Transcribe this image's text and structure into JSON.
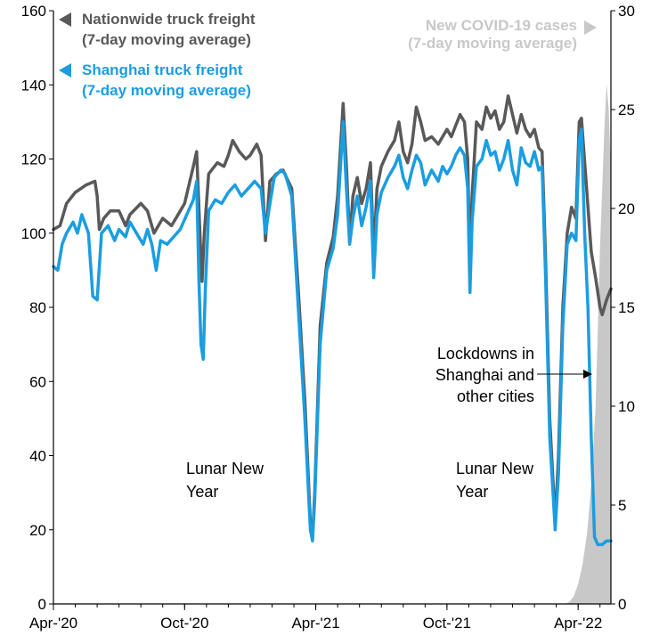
{
  "chart_data": {
    "type": "line",
    "x_range": [
      "Apr-'20",
      "Apr-'22"
    ],
    "x_ticks": [
      "Apr-'20",
      "Oct-'20",
      "Apr-'21",
      "Oct-'21",
      "Apr-'22"
    ],
    "y_left": {
      "ticks": [
        0,
        20,
        40,
        60,
        80,
        100,
        120,
        140,
        160
      ],
      "range": [
        0,
        160
      ]
    },
    "y_right": {
      "ticks": [
        0,
        5,
        10,
        15,
        20,
        25,
        30
      ],
      "range": [
        0,
        30
      ]
    },
    "grid": false,
    "legend_placement": "top-left and top-right",
    "series": [
      {
        "name": "Nationwide truck freight",
        "name_line2": "(7-day moving average)",
        "axis": "left",
        "color": "#595959",
        "points": [
          [
            0,
            101
          ],
          [
            0.3,
            102
          ],
          [
            0.6,
            108
          ],
          [
            1.0,
            111
          ],
          [
            1.5,
            113
          ],
          [
            1.9,
            114
          ],
          [
            2.0,
            110
          ],
          [
            2.1,
            101
          ],
          [
            2.3,
            104
          ],
          [
            2.6,
            106
          ],
          [
            3.0,
            106
          ],
          [
            3.3,
            102
          ],
          [
            3.5,
            105
          ],
          [
            4.0,
            108
          ],
          [
            4.3,
            106
          ],
          [
            4.6,
            100
          ],
          [
            5.0,
            104
          ],
          [
            5.4,
            102
          ],
          [
            5.8,
            106
          ],
          [
            6.0,
            108
          ],
          [
            6.2,
            113
          ],
          [
            6.4,
            118
          ],
          [
            6.55,
            122
          ],
          [
            6.7,
            100
          ],
          [
            6.8,
            87
          ],
          [
            6.9,
            100
          ],
          [
            7.1,
            116
          ],
          [
            7.5,
            119
          ],
          [
            7.8,
            118
          ],
          [
            8.0,
            121
          ],
          [
            8.2,
            125
          ],
          [
            8.5,
            122
          ],
          [
            8.8,
            120
          ],
          [
            9.0,
            121
          ],
          [
            9.3,
            124
          ],
          [
            9.5,
            121
          ],
          [
            9.7,
            98
          ],
          [
            9.9,
            114
          ],
          [
            10.2,
            116
          ],
          [
            10.5,
            117
          ],
          [
            10.9,
            112
          ],
          [
            11.2,
            85
          ],
          [
            11.5,
            55
          ],
          [
            11.75,
            22
          ],
          [
            11.85,
            18
          ],
          [
            11.95,
            30
          ],
          [
            12.2,
            75
          ],
          [
            12.5,
            92
          ],
          [
            12.8,
            99
          ],
          [
            13.0,
            110
          ],
          [
            13.25,
            135
          ],
          [
            13.4,
            118
          ],
          [
            13.55,
            98
          ],
          [
            13.7,
            110
          ],
          [
            13.9,
            115
          ],
          [
            14.1,
            108
          ],
          [
            14.3,
            112
          ],
          [
            14.5,
            119
          ],
          [
            14.65,
            94
          ],
          [
            14.8,
            112
          ],
          [
            15.0,
            118
          ],
          [
            15.3,
            122
          ],
          [
            15.6,
            125
          ],
          [
            15.8,
            130
          ],
          [
            16.0,
            122
          ],
          [
            16.2,
            119
          ],
          [
            16.4,
            124
          ],
          [
            16.6,
            134
          ],
          [
            16.8,
            130
          ],
          [
            17.0,
            125
          ],
          [
            17.3,
            126
          ],
          [
            17.6,
            124
          ],
          [
            17.8,
            126
          ],
          [
            18.0,
            128
          ],
          [
            18.2,
            126
          ],
          [
            18.4,
            129
          ],
          [
            18.6,
            132
          ],
          [
            18.8,
            130
          ],
          [
            18.95,
            120
          ],
          [
            19.05,
            90
          ],
          [
            19.15,
            110
          ],
          [
            19.35,
            130
          ],
          [
            19.6,
            128
          ],
          [
            19.8,
            134
          ],
          [
            20.0,
            131
          ],
          [
            20.2,
            133
          ],
          [
            20.4,
            128
          ],
          [
            20.6,
            130
          ],
          [
            20.8,
            137
          ],
          [
            21.0,
            132
          ],
          [
            21.2,
            127
          ],
          [
            21.4,
            132
          ],
          [
            21.6,
            128
          ],
          [
            21.8,
            126
          ],
          [
            22.0,
            128
          ],
          [
            22.2,
            123
          ],
          [
            22.35,
            122
          ],
          [
            22.5,
            95
          ],
          [
            22.7,
            50
          ],
          [
            22.95,
            22
          ],
          [
            23.1,
            40
          ],
          [
            23.3,
            80
          ],
          [
            23.5,
            100
          ],
          [
            23.7,
            107
          ],
          [
            23.9,
            104
          ],
          [
            24.05,
            130
          ],
          [
            24.15,
            131
          ],
          [
            24.35,
            115
          ],
          [
            24.6,
            95
          ],
          [
            24.8,
            88
          ],
          [
            25.0,
            80
          ],
          [
            25.1,
            78
          ],
          [
            25.3,
            82
          ],
          [
            25.5,
            85
          ]
        ]
      },
      {
        "name": "Shanghai truck freight",
        "name_line2": "(7-day moving average)",
        "axis": "left",
        "color": "#1b9de0",
        "points": [
          [
            0,
            91
          ],
          [
            0.2,
            90
          ],
          [
            0.4,
            97
          ],
          [
            0.6,
            100
          ],
          [
            0.9,
            103
          ],
          [
            1.1,
            100
          ],
          [
            1.3,
            105
          ],
          [
            1.6,
            100
          ],
          [
            1.8,
            83
          ],
          [
            2.0,
            82
          ],
          [
            2.2,
            100
          ],
          [
            2.5,
            102
          ],
          [
            2.8,
            98
          ],
          [
            3.0,
            101
          ],
          [
            3.3,
            99
          ],
          [
            3.5,
            103
          ],
          [
            3.8,
            100
          ],
          [
            4.1,
            97
          ],
          [
            4.3,
            101
          ],
          [
            4.5,
            97
          ],
          [
            4.7,
            90
          ],
          [
            4.9,
            98
          ],
          [
            5.2,
            97
          ],
          [
            5.5,
            99
          ],
          [
            5.8,
            101
          ],
          [
            6.1,
            105
          ],
          [
            6.4,
            109
          ],
          [
            6.55,
            114
          ],
          [
            6.65,
            88
          ],
          [
            6.75,
            70
          ],
          [
            6.85,
            66
          ],
          [
            6.95,
            85
          ],
          [
            7.1,
            106
          ],
          [
            7.4,
            109
          ],
          [
            7.7,
            108
          ],
          [
            8.0,
            111
          ],
          [
            8.3,
            113
          ],
          [
            8.6,
            110
          ],
          [
            8.9,
            112
          ],
          [
            9.2,
            114
          ],
          [
            9.5,
            112
          ],
          [
            9.7,
            100
          ],
          [
            9.85,
            106
          ],
          [
            10.1,
            115
          ],
          [
            10.4,
            117
          ],
          [
            10.6,
            116
          ],
          [
            10.9,
            110
          ],
          [
            11.2,
            80
          ],
          [
            11.5,
            50
          ],
          [
            11.75,
            20
          ],
          [
            11.85,
            17
          ],
          [
            11.95,
            28
          ],
          [
            12.2,
            70
          ],
          [
            12.5,
            90
          ],
          [
            12.8,
            96
          ],
          [
            13.0,
            105
          ],
          [
            13.25,
            130
          ],
          [
            13.4,
            112
          ],
          [
            13.55,
            97
          ],
          [
            13.7,
            104
          ],
          [
            13.9,
            110
          ],
          [
            14.1,
            102
          ],
          [
            14.3,
            107
          ],
          [
            14.5,
            114
          ],
          [
            14.65,
            88
          ],
          [
            14.8,
            105
          ],
          [
            15.0,
            111
          ],
          [
            15.3,
            115
          ],
          [
            15.6,
            118
          ],
          [
            15.8,
            121
          ],
          [
            16.0,
            115
          ],
          [
            16.2,
            112
          ],
          [
            16.4,
            117
          ],
          [
            16.6,
            121
          ],
          [
            16.8,
            119
          ],
          [
            17.0,
            113
          ],
          [
            17.3,
            117
          ],
          [
            17.6,
            114
          ],
          [
            17.8,
            118
          ],
          [
            18.0,
            116
          ],
          [
            18.2,
            118
          ],
          [
            18.4,
            121
          ],
          [
            18.6,
            123
          ],
          [
            18.8,
            121
          ],
          [
            18.95,
            112
          ],
          [
            19.05,
            84
          ],
          [
            19.15,
            103
          ],
          [
            19.35,
            118
          ],
          [
            19.6,
            120
          ],
          [
            19.8,
            125
          ],
          [
            20.0,
            121
          ],
          [
            20.2,
            122
          ],
          [
            20.4,
            117
          ],
          [
            20.6,
            120
          ],
          [
            20.8,
            125
          ],
          [
            21.0,
            117
          ],
          [
            21.2,
            113
          ],
          [
            21.4,
            123
          ],
          [
            21.6,
            119
          ],
          [
            21.8,
            118
          ],
          [
            22.0,
            122
          ],
          [
            22.2,
            117
          ],
          [
            22.35,
            118
          ],
          [
            22.5,
            90
          ],
          [
            22.7,
            45
          ],
          [
            22.95,
            20
          ],
          [
            23.1,
            35
          ],
          [
            23.3,
            75
          ],
          [
            23.5,
            97
          ],
          [
            23.7,
            100
          ],
          [
            23.9,
            98
          ],
          [
            24.05,
            125
          ],
          [
            24.15,
            128
          ],
          [
            24.3,
            100
          ],
          [
            24.45,
            80
          ],
          [
            24.6,
            45
          ],
          [
            24.75,
            18
          ],
          [
            24.9,
            16
          ],
          [
            25.1,
            16
          ],
          [
            25.3,
            17
          ],
          [
            25.5,
            17
          ]
        ]
      },
      {
        "name": "New COVID-19 cases",
        "name_line2": "(7-day moving average)",
        "axis": "right",
        "type": "area",
        "color": "#c8c8c8",
        "points": [
          [
            0,
            0
          ],
          [
            23.4,
            0
          ],
          [
            23.6,
            0.1
          ],
          [
            23.8,
            0.4
          ],
          [
            24.0,
            1.0
          ],
          [
            24.2,
            2.0
          ],
          [
            24.4,
            3.5
          ],
          [
            24.6,
            6.0
          ],
          [
            24.8,
            10.0
          ],
          [
            24.9,
            14.0
          ],
          [
            25.0,
            18.0
          ],
          [
            25.1,
            21.0
          ],
          [
            25.2,
            24.0
          ],
          [
            25.3,
            26.3
          ],
          [
            25.4,
            25.0
          ],
          [
            25.5,
            22.0
          ]
        ]
      }
    ],
    "annotations": [
      {
        "text_lines": [
          "Lunar New",
          "Year"
        ]
      },
      {
        "text_lines": [
          "Lunar New",
          "Year"
        ]
      },
      {
        "text_lines": [
          "Lockdowns in",
          "Shanghai and",
          "other cities"
        ]
      }
    ]
  }
}
